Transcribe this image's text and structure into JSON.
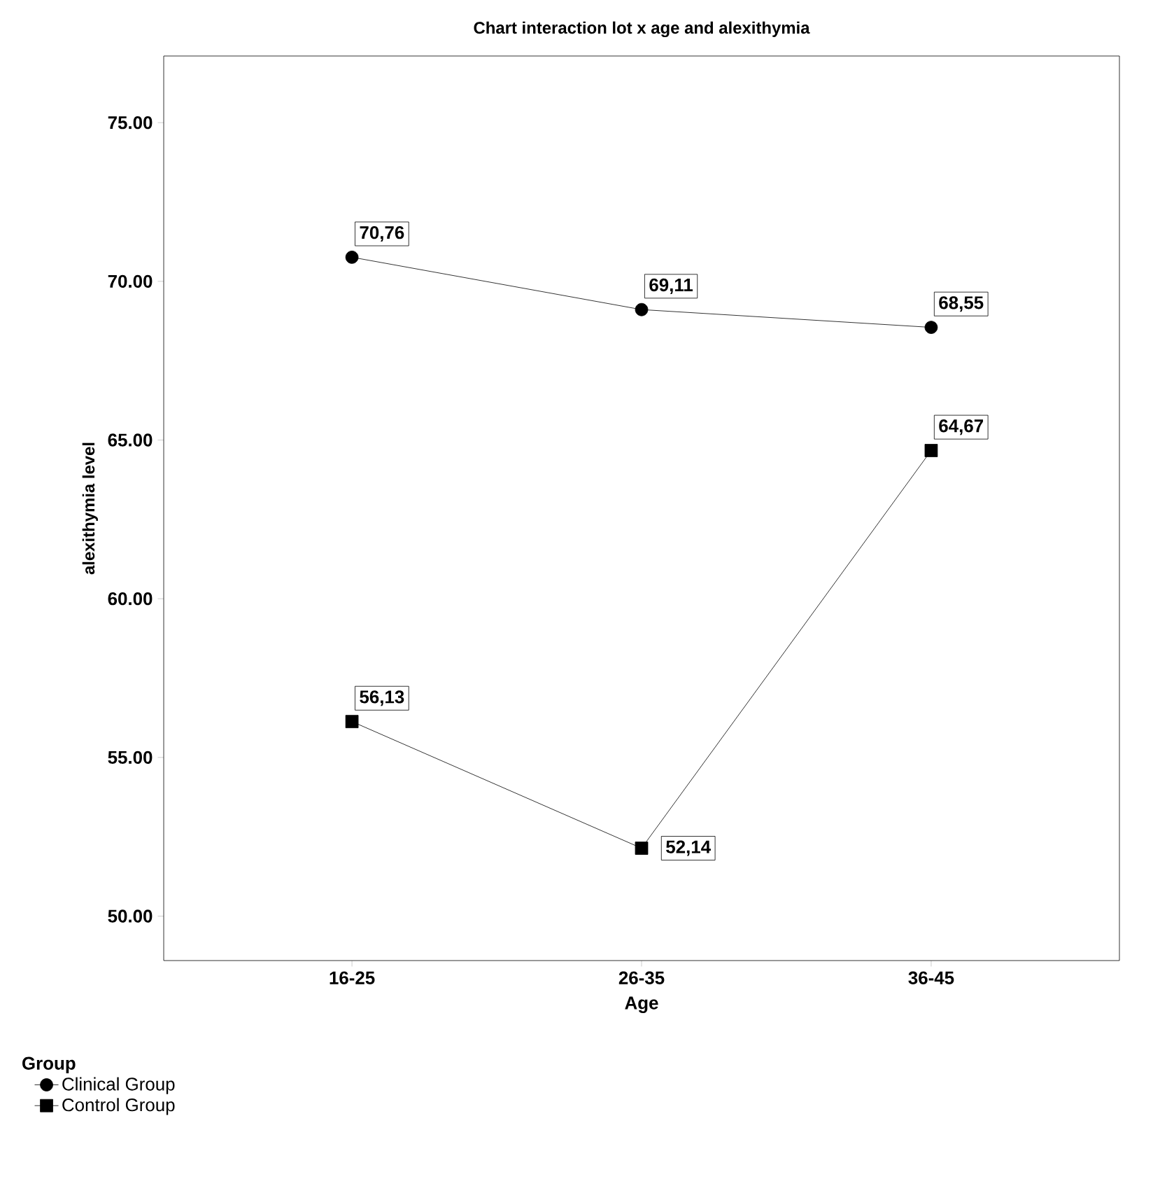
{
  "chart_data": {
    "type": "line",
    "title": "Chart interaction lot x age and alexithymia",
    "xlabel": "Age",
    "ylabel": "alexithymia level",
    "legend_title": "Group",
    "categories": [
      "16-25",
      "26-35",
      "36-45"
    ],
    "series": [
      {
        "name": "Clinical Group",
        "color": "#000000",
        "marker": "circle",
        "values": [
          70.76,
          69.11,
          68.55
        ],
        "value_labels": [
          "70,76",
          "69,11",
          "68,55"
        ]
      },
      {
        "name": "Control Group",
        "color": "#000000",
        "marker": "square",
        "values": [
          56.13,
          52.14,
          64.67
        ],
        "value_labels": [
          "56,13",
          "52,14",
          "64,67"
        ]
      }
    ],
    "ylim": [
      48.6,
      77.1
    ],
    "yticks": [
      {
        "value": 50,
        "label": "50.00"
      },
      {
        "value": 55,
        "label": "55.00"
      },
      {
        "value": 60,
        "label": "60.00"
      },
      {
        "value": 65,
        "label": "65.00"
      },
      {
        "value": 70,
        "label": "70.00"
      },
      {
        "value": 75,
        "label": "75.00"
      }
    ],
    "grid": false,
    "legend": "bottom left",
    "line_style": "solid"
  }
}
